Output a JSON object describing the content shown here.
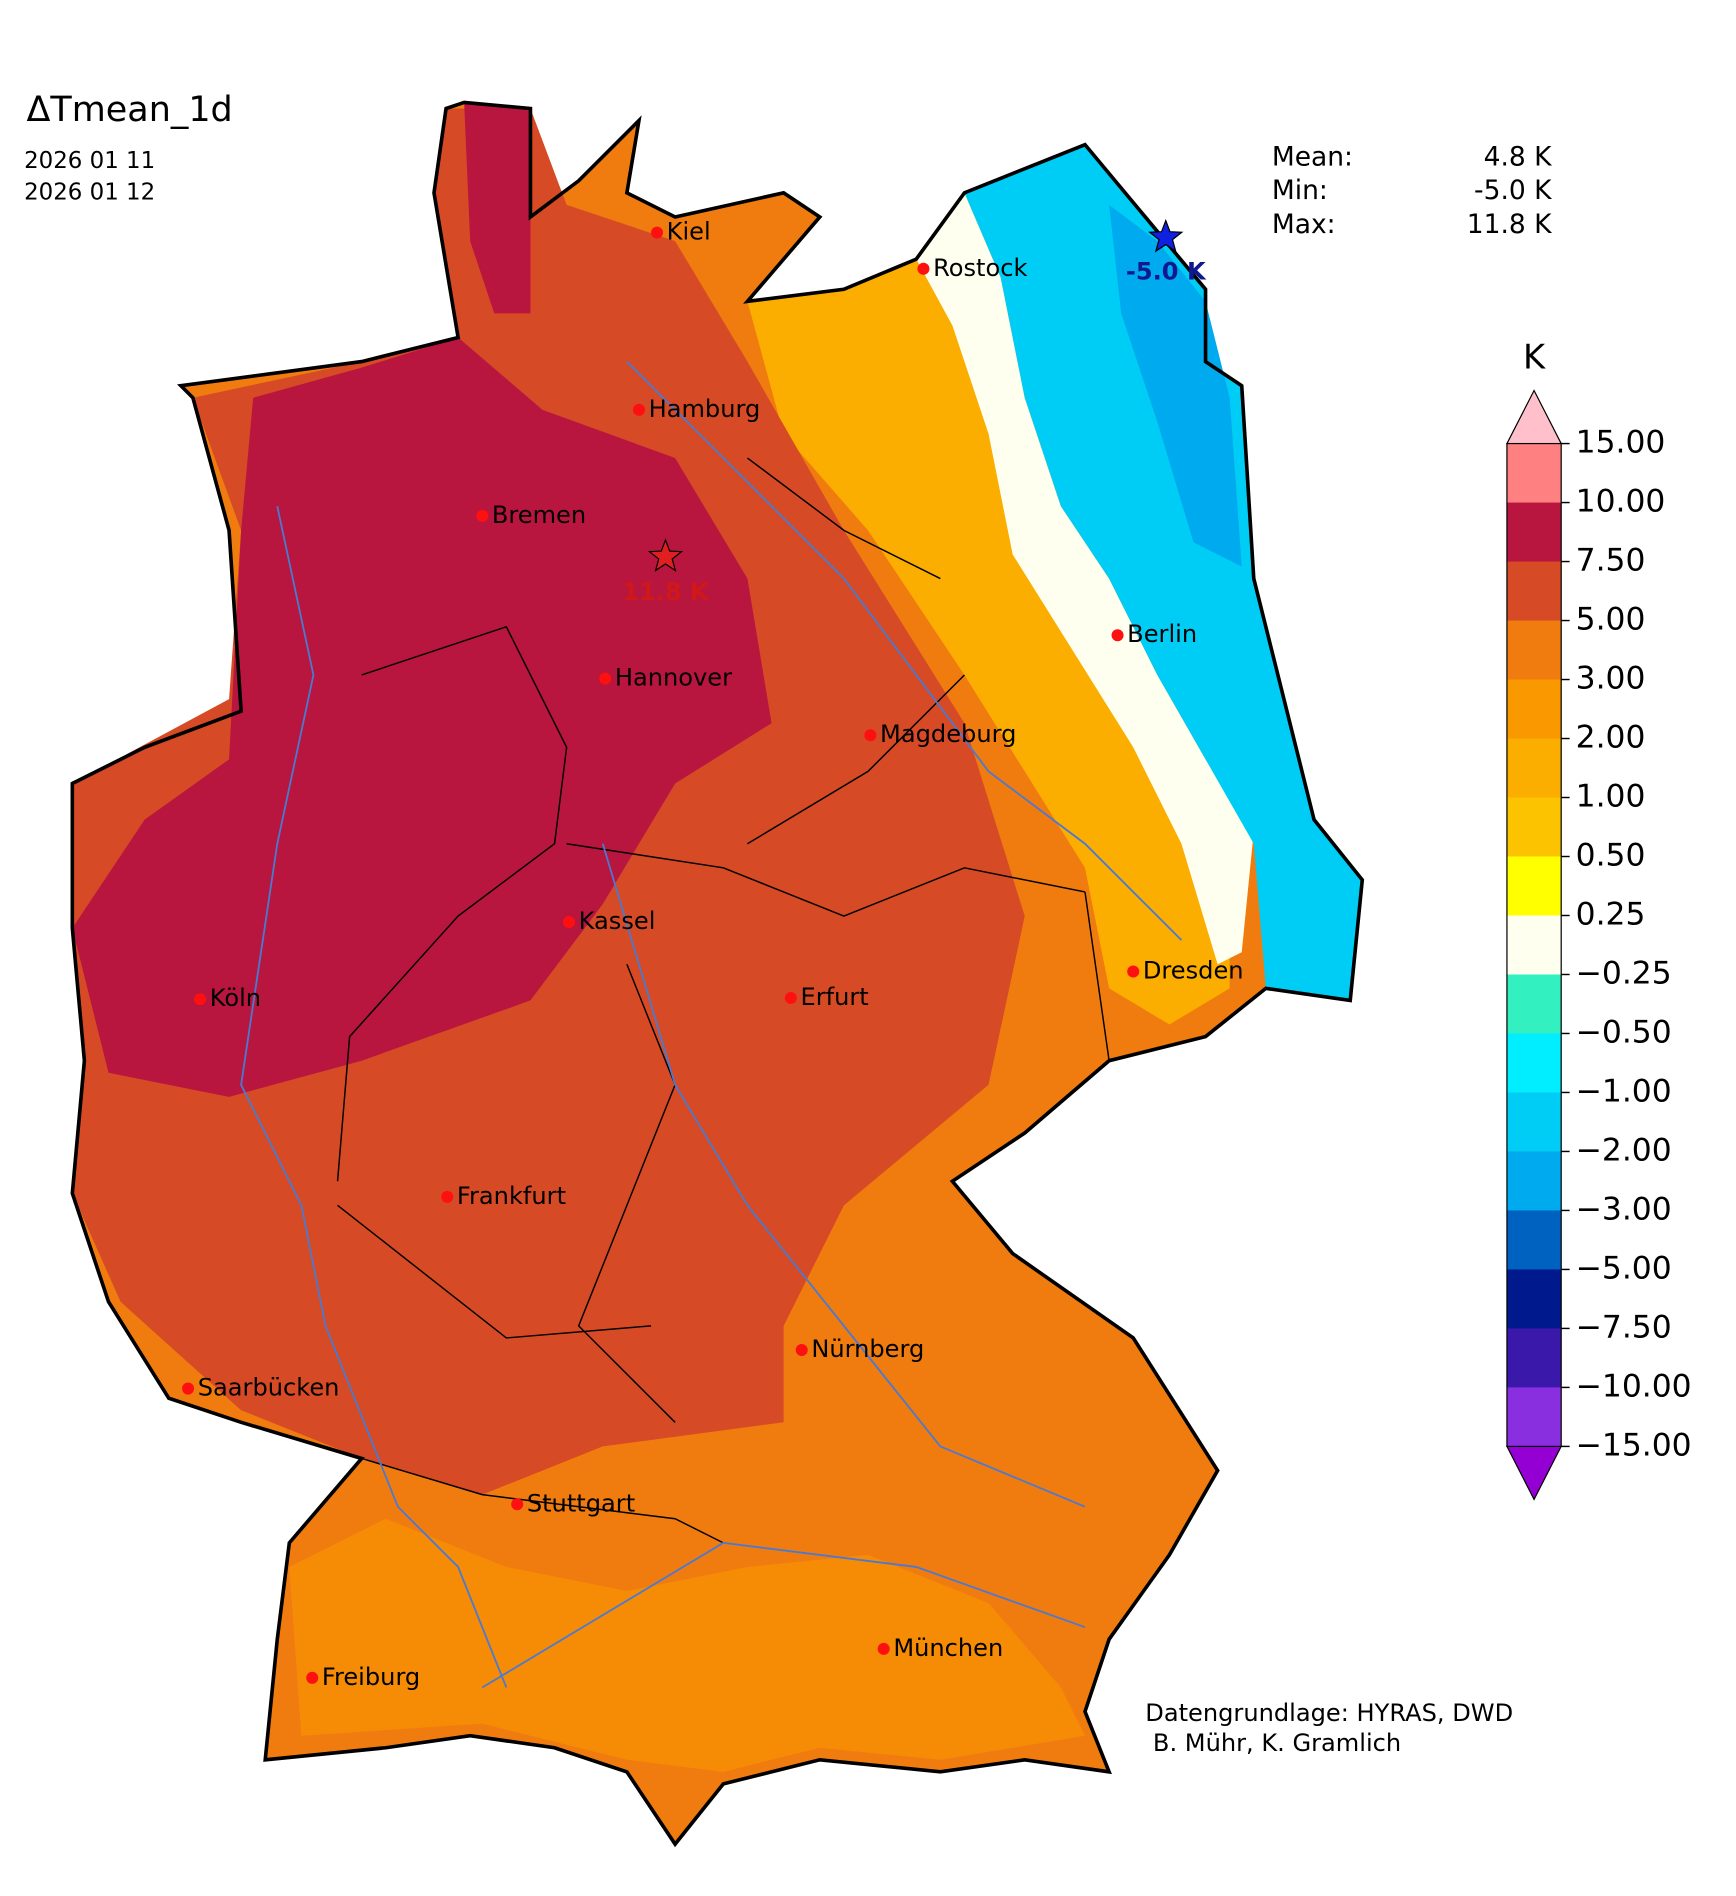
{
  "header": {
    "title": "ΔTmean_1d",
    "dates": [
      "2026 01 11",
      "2026 01 12"
    ]
  },
  "stats": [
    {
      "label": "Mean:",
      "value": "4.8 K"
    },
    {
      "label": "Min:",
      "value": "-5.0 K"
    },
    {
      "label": "Max:",
      "value": "11.8 K"
    }
  ],
  "markers": {
    "min_label": "-5.0 K",
    "max_label": "11.8 K"
  },
  "cities": [
    "Kiel",
    "Rostock",
    "Hamburg",
    "Bremen",
    "Hannover",
    "Berlin",
    "Magdeburg",
    "Kassel",
    "Dresden",
    "Köln",
    "Erfurt",
    "Frankfurt",
    "Nürnberg",
    "Saarbücken",
    "Stuttgart",
    "München",
    "Freiburg"
  ],
  "colorbar": {
    "title": "K",
    "ticks": [
      {
        "value": 15,
        "label": "15.00"
      },
      {
        "value": 10,
        "label": "10.00"
      },
      {
        "value": 7.5,
        "label": "7.50"
      },
      {
        "value": 5,
        "label": "5.00"
      },
      {
        "value": 3,
        "label": "3.00"
      },
      {
        "value": 2,
        "label": "2.00"
      },
      {
        "value": 1,
        "label": "1.00"
      },
      {
        "value": 0.5,
        "label": "0.50"
      },
      {
        "value": 0.25,
        "label": "0.25"
      },
      {
        "value": -0.25,
        "label": "−0.25"
      },
      {
        "value": -0.5,
        "label": "−0.50"
      },
      {
        "value": -1,
        "label": "−1.00"
      },
      {
        "value": -2,
        "label": "−2.00"
      },
      {
        "value": -3,
        "label": "−3.00"
      },
      {
        "value": -5,
        "label": "−5.00"
      },
      {
        "value": -7.5,
        "label": "−7.50"
      },
      {
        "value": -10,
        "label": "−10.00"
      },
      {
        "value": -15,
        "label": "−15.00"
      }
    ],
    "colors": [
      "#ff8080",
      "#b8153f",
      "#d64a25",
      "#f07c10",
      "#fa9800",
      "#fbad00",
      "#fcc400",
      "#ffff00",
      "#fffff0",
      "#33f0c0",
      "#00eeff",
      "#00cdf5",
      "#00aaee",
      "#0062c0",
      "#001a8e",
      "#3a18aa",
      "#8a2fe0"
    ],
    "extend_colors": [
      "#ffc0cb",
      "#9400d3"
    ]
  },
  "credits": [
    "Datengrundlage: HYRAS, DWD",
    " B. Mühr, K. Gramlich"
  ]
}
